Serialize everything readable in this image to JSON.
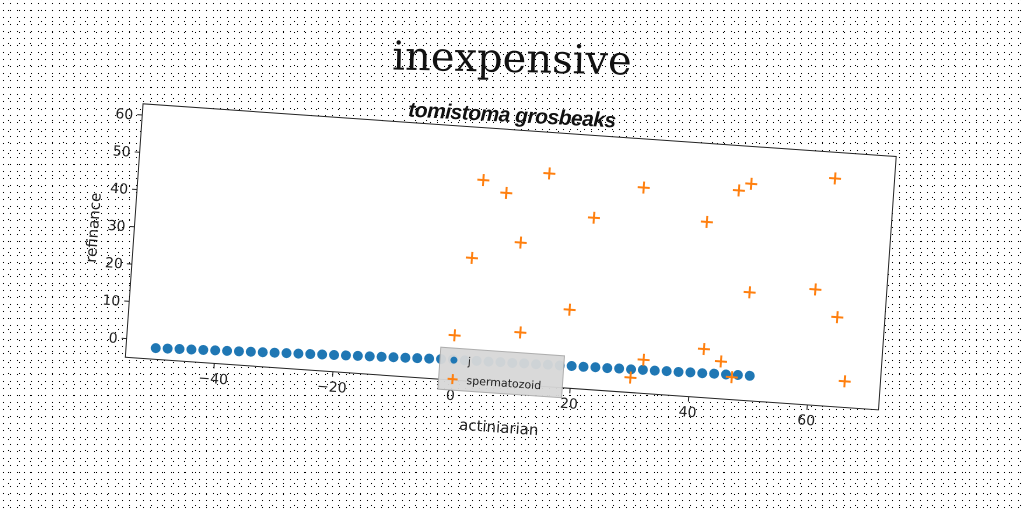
{
  "title": "inexpensive",
  "subtitle": "tomistoma grosbeaks",
  "chart_data": {
    "type": "scatter",
    "xlabel": "actiniarian",
    "ylabel": "refinance",
    "xlim": [
      -55,
      72
    ],
    "ylim": [
      -5,
      63
    ],
    "xticks": [
      -40,
      -20,
      0,
      20,
      40,
      60
    ],
    "yticks": [
      0,
      10,
      20,
      30,
      40,
      50,
      60
    ],
    "grid": false,
    "legend_position": "bottom-center",
    "series": [
      {
        "name": "j",
        "marker": "circle",
        "color": "#1f77b4",
        "x": [
          -50,
          -48,
          -46,
          -44,
          -42,
          -40,
          -38,
          -36,
          -34,
          -32,
          -30,
          -28,
          -26,
          -24,
          -22,
          -20,
          -18,
          -16,
          -14,
          -12,
          -10,
          -8,
          -6,
          -4,
          -2,
          0,
          2,
          4,
          6,
          8,
          10,
          12,
          14,
          16,
          18,
          20,
          22,
          24,
          26,
          28,
          30,
          32,
          34,
          36,
          38,
          40,
          42,
          44,
          46,
          48,
          50
        ],
        "y": [
          -2,
          -1.9,
          -1.8,
          -1.7,
          -1.6,
          -1.5,
          -1.4,
          -1.3,
          -1.2,
          -1.1,
          -1,
          -0.9,
          -0.8,
          -0.7,
          -0.6,
          -0.5,
          -0.4,
          -0.3,
          -0.2,
          -0.1,
          0,
          0.1,
          0.2,
          0.3,
          0.4,
          0.5,
          0.5,
          0.6,
          0.6,
          0.7,
          0.7,
          0.8,
          0.8,
          0.9,
          0.9,
          1,
          1,
          1.1,
          1.1,
          1.2,
          1.2,
          1.3,
          1.3,
          1.4,
          1.4,
          1.5,
          1.5,
          1.6,
          1.6,
          1.7,
          1.7
        ]
      },
      {
        "name": "spermatozoid",
        "marker": "plus",
        "color": "#ff7f0e",
        "x": [
          0,
          2,
          3,
          7,
          10,
          11,
          14,
          19,
          22,
          30,
          30,
          32,
          41,
          42,
          45,
          46,
          47,
          48,
          49,
          60,
          62,
          64,
          66
        ],
        "y": [
          7,
          28,
          49,
          46,
          33,
          9,
          52,
          16,
          41,
          50,
          -1,
          4,
          42,
          8,
          5,
          51,
          1,
          53,
          24,
          26,
          56,
          19,
          2
        ]
      }
    ]
  }
}
